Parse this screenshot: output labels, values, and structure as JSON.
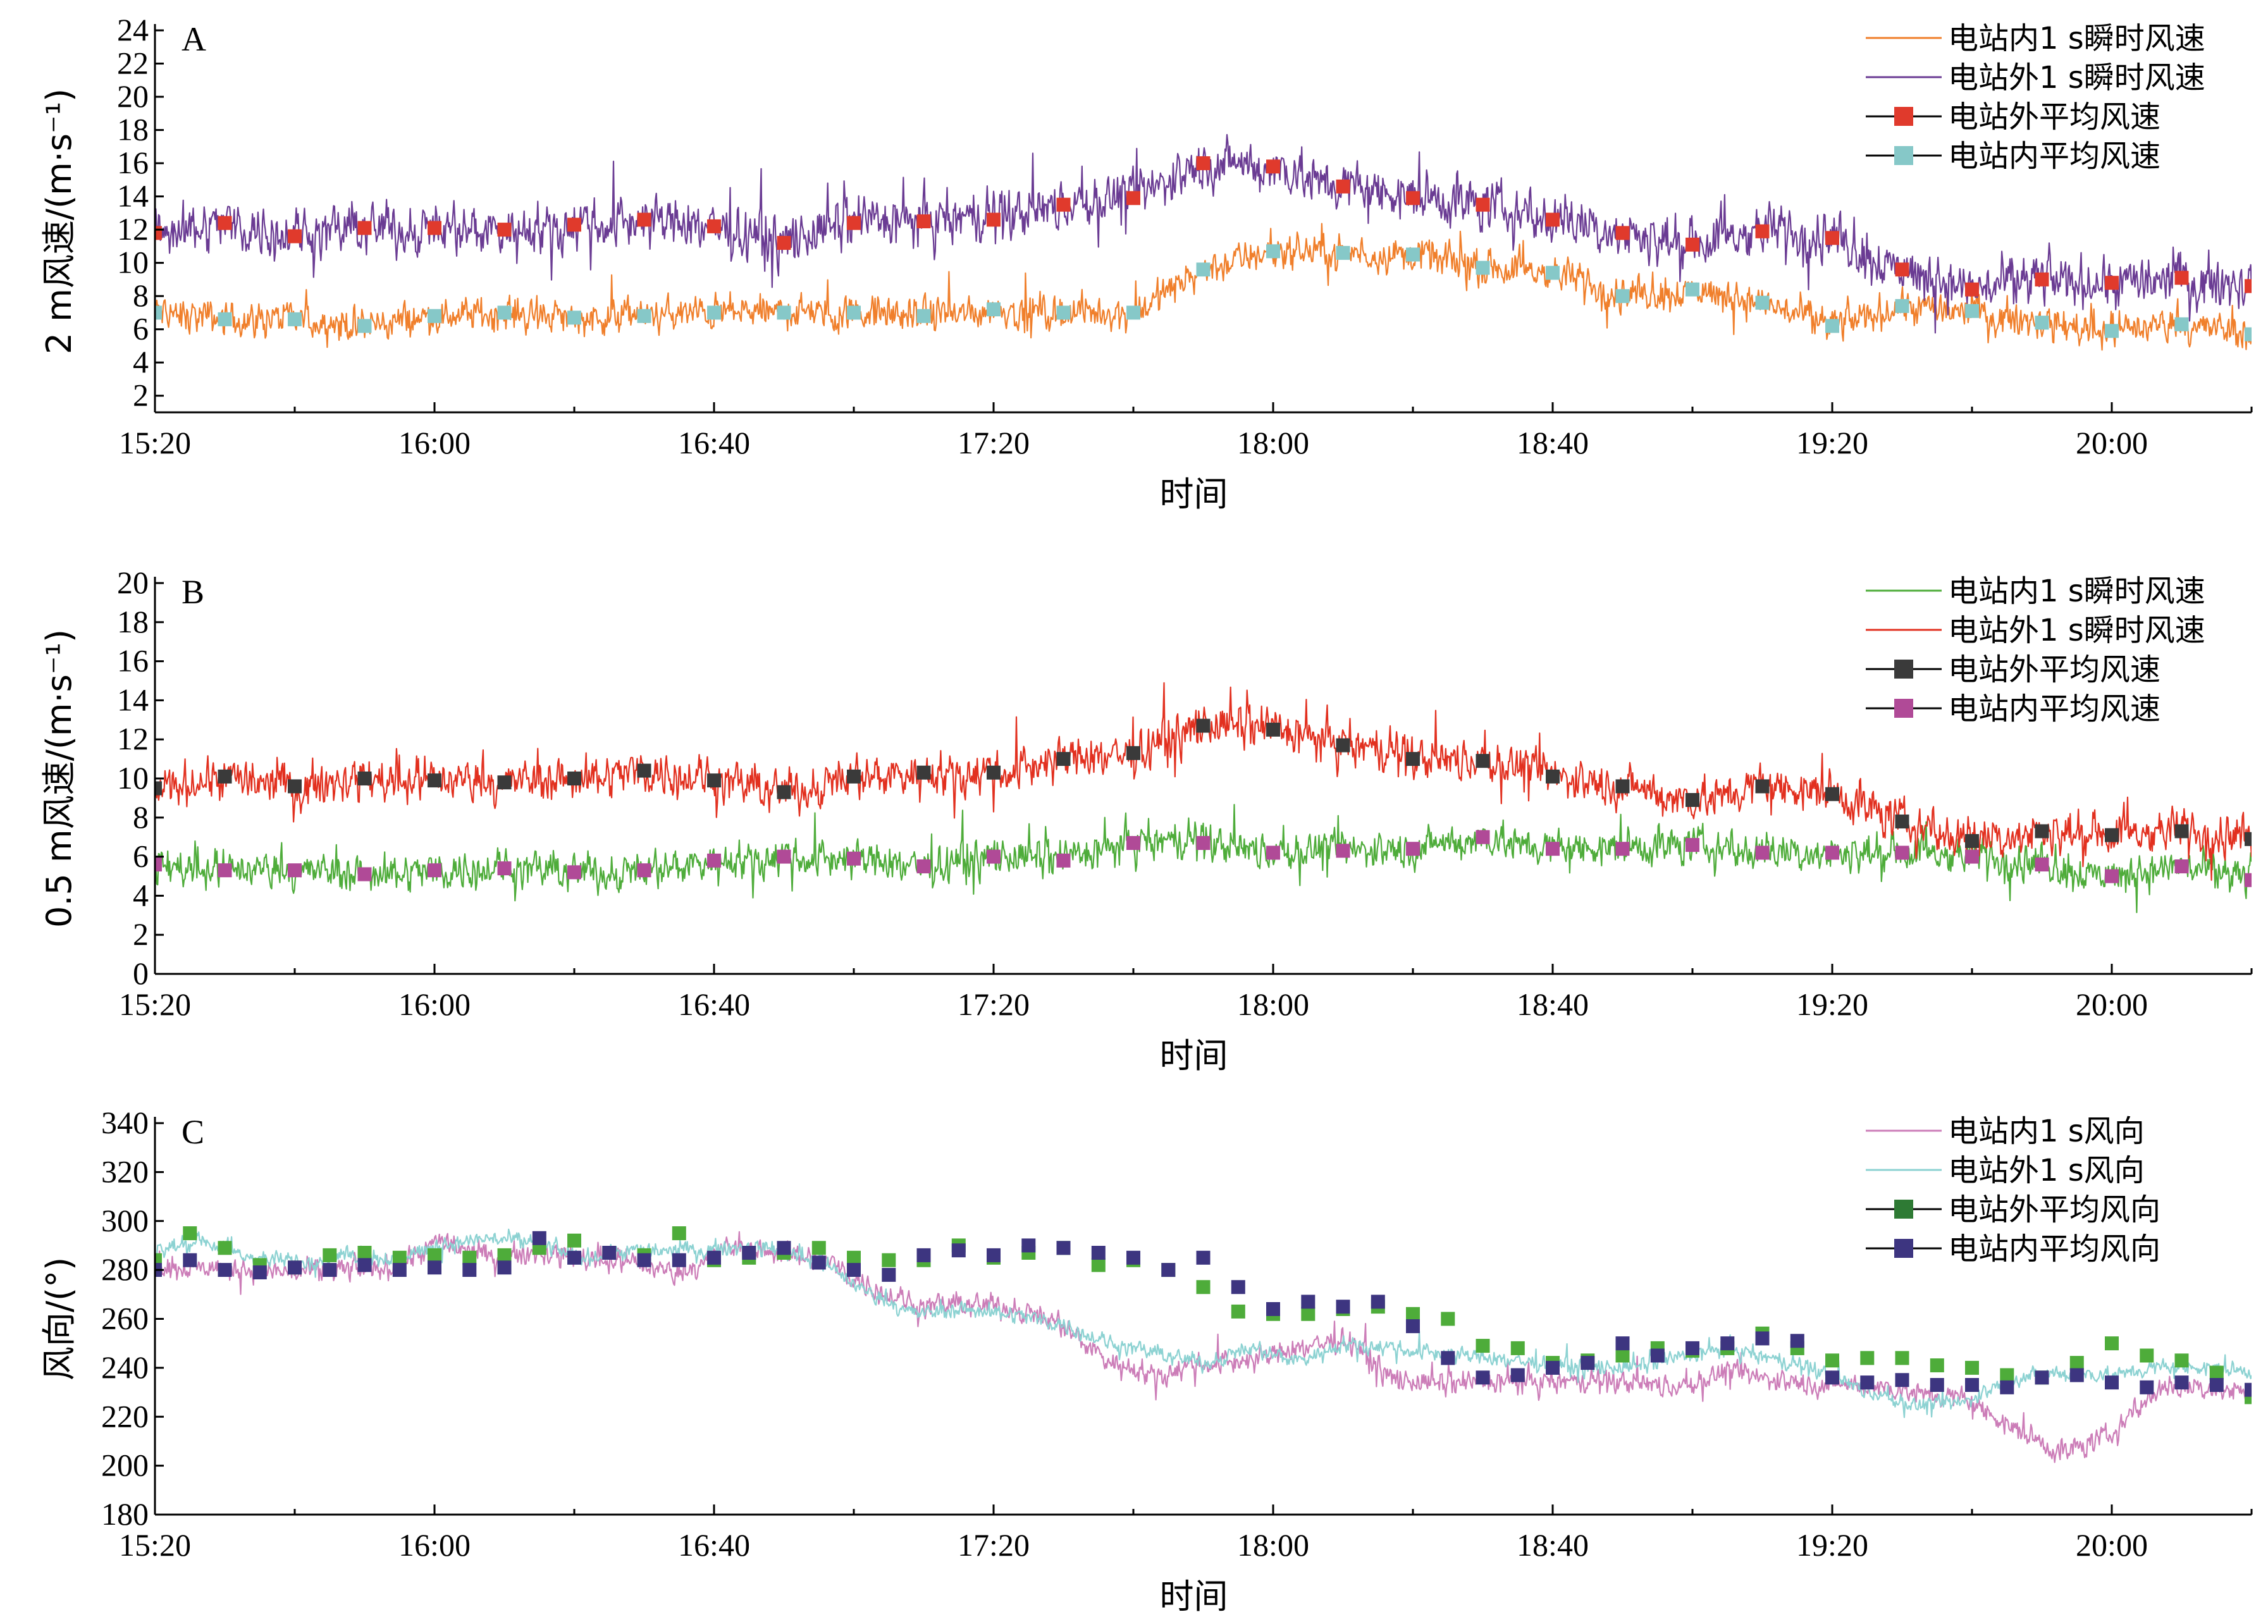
{
  "chart_data": [
    {
      "type": "line",
      "panel_label": "A",
      "xlabel": "时间",
      "ylabel": "2 m风速/(m·s⁻¹)",
      "xticks": [
        "15:20",
        "16:00",
        "16:40",
        "17:20",
        "18:00",
        "18:40",
        "19:20",
        "20:00"
      ],
      "xlim_minutes": [
        0,
        300
      ],
      "ylim": [
        1,
        24
      ],
      "yticks": [
        2,
        4,
        6,
        8,
        10,
        12,
        14,
        16,
        18,
        20,
        22,
        24
      ],
      "legend_position": "top-right",
      "series": [
        {
          "name": "电站内1 s瞬时风速",
          "kind": "line",
          "color": "#F07F2B",
          "mean": [
            7.0,
            6.6,
            6.6,
            6.2,
            6.8,
            7.0,
            6.7,
            6.8,
            7.0,
            7.0,
            7.0,
            6.8,
            7.2,
            7.0,
            7.0,
            9.6,
            10.7,
            10.6,
            10.5,
            9.7,
            9.4,
            8.0,
            8.4,
            7.6,
            6.2,
            7.4,
            7.1,
            6.4,
            5.9,
            6.3,
            5.7
          ],
          "noise": 2.2
        },
        {
          "name": "电站外1 s瞬时风速",
          "kind": "line",
          "color": "#6A3B93",
          "mean": [
            11.8,
            12.4,
            11.6,
            12.1,
            12.1,
            12.0,
            12.3,
            12.6,
            12.2,
            11.2,
            12.4,
            12.5,
            12.6,
            13.5,
            13.9,
            16.0,
            15.8,
            14.6,
            13.9,
            13.5,
            12.6,
            11.8,
            11.1,
            11.9,
            11.5,
            9.6,
            8.4,
            9.0,
            8.8,
            9.1,
            8.6
          ],
          "noise": 3.2
        },
        {
          "name": "电站外平均风速",
          "kind": "markers",
          "color": "#E03A2C",
          "x": [
            0,
            10,
            20,
            30,
            40,
            50,
            60,
            70,
            80,
            90,
            100,
            110,
            120,
            130,
            140,
            150,
            160,
            170,
            180,
            190,
            200,
            210,
            220,
            230,
            240,
            250,
            260,
            270,
            280,
            290,
            300
          ],
          "values": [
            11.8,
            12.4,
            11.6,
            12.1,
            12.1,
            12.0,
            12.3,
            12.6,
            12.2,
            11.2,
            12.4,
            12.5,
            12.6,
            13.5,
            13.9,
            16.0,
            15.8,
            14.6,
            13.9,
            13.5,
            12.6,
            11.8,
            11.1,
            11.9,
            11.5,
            9.6,
            8.4,
            9.0,
            8.8,
            9.1,
            8.6
          ]
        },
        {
          "name": "电站内平均风速",
          "kind": "markers",
          "color": "#86C8C8",
          "x": [
            0,
            10,
            20,
            30,
            40,
            50,
            60,
            70,
            80,
            90,
            100,
            110,
            120,
            130,
            140,
            150,
            160,
            170,
            180,
            190,
            200,
            210,
            220,
            230,
            240,
            250,
            260,
            270,
            280,
            290,
            300
          ],
          "values": [
            7.0,
            6.6,
            6.6,
            6.2,
            6.8,
            7.0,
            6.7,
            6.8,
            7.0,
            7.0,
            7.0,
            6.8,
            7.2,
            7.0,
            7.0,
            9.6,
            10.7,
            10.6,
            10.5,
            9.7,
            9.4,
            8.0,
            8.4,
            7.6,
            6.2,
            7.4,
            7.1,
            6.4,
            5.9,
            6.3,
            5.7
          ]
        }
      ]
    },
    {
      "type": "line",
      "panel_label": "B",
      "xlabel": "时间",
      "ylabel": "0.5 m风速/(m·s⁻¹)",
      "xticks": [
        "15:20",
        "16:00",
        "16:40",
        "17:20",
        "18:00",
        "18:40",
        "19:20",
        "20:00"
      ],
      "xlim_minutes": [
        0,
        300
      ],
      "ylim": [
        0,
        20
      ],
      "yticks": [
        0,
        2,
        4,
        6,
        8,
        10,
        12,
        14,
        16,
        18,
        20
      ],
      "legend_position": "top-right",
      "series": [
        {
          "name": "电站内1 s瞬时风速",
          "kind": "line",
          "color": "#4EAC3A",
          "mean": [
            5.6,
            5.3,
            5.3,
            5.1,
            5.3,
            5.4,
            5.2,
            5.3,
            5.8,
            6.0,
            5.9,
            5.5,
            6.0,
            5.8,
            6.7,
            6.7,
            6.2,
            6.3,
            6.4,
            7.0,
            6.4,
            6.4,
            6.6,
            6.2,
            6.2,
            6.2,
            6.0,
            5.6,
            5.0,
            5.5,
            4.8
          ],
          "noise": 2.0
        },
        {
          "name": "电站外1 s瞬时风速",
          "kind": "line",
          "color": "#E2301F",
          "mean": [
            9.5,
            10.1,
            9.6,
            10.0,
            9.9,
            9.8,
            10.0,
            10.4,
            9.9,
            9.3,
            10.1,
            10.3,
            10.3,
            11.0,
            11.3,
            12.7,
            12.5,
            11.7,
            11.0,
            10.9,
            10.1,
            9.6,
            8.9,
            9.6,
            9.2,
            7.8,
            6.8,
            7.3,
            7.1,
            7.3,
            6.9
          ],
          "noise": 2.3
        },
        {
          "name": "电站外平均风速",
          "kind": "markers",
          "color": "#3A3A3A",
          "x": [
            0,
            10,
            20,
            30,
            40,
            50,
            60,
            70,
            80,
            90,
            100,
            110,
            120,
            130,
            140,
            150,
            160,
            170,
            180,
            190,
            200,
            210,
            220,
            230,
            240,
            250,
            260,
            270,
            280,
            290,
            300
          ],
          "values": [
            9.5,
            10.1,
            9.6,
            10.0,
            9.9,
            9.8,
            10.0,
            10.4,
            9.9,
            9.3,
            10.1,
            10.3,
            10.3,
            11.0,
            11.3,
            12.7,
            12.5,
            11.7,
            11.0,
            10.9,
            10.1,
            9.6,
            8.9,
            9.6,
            9.2,
            7.8,
            6.8,
            7.3,
            7.1,
            7.3,
            6.9
          ]
        },
        {
          "name": "电站内平均风速",
          "kind": "markers",
          "color": "#B04A97",
          "x": [
            0,
            10,
            20,
            30,
            40,
            50,
            60,
            70,
            80,
            90,
            100,
            110,
            120,
            130,
            140,
            150,
            160,
            170,
            180,
            190,
            200,
            210,
            220,
            230,
            240,
            250,
            260,
            270,
            280,
            290,
            300
          ],
          "values": [
            5.6,
            5.3,
            5.3,
            5.1,
            5.3,
            5.4,
            5.2,
            5.3,
            5.8,
            6.0,
            5.9,
            5.5,
            6.0,
            5.8,
            6.7,
            6.7,
            6.2,
            6.3,
            6.4,
            7.0,
            6.4,
            6.4,
            6.6,
            6.2,
            6.2,
            6.2,
            6.0,
            5.6,
            5.0,
            5.5,
            4.8
          ]
        }
      ]
    },
    {
      "type": "line",
      "panel_label": "C",
      "xlabel": "时间",
      "ylabel": "风向/(°)",
      "xticks": [
        "15:20",
        "16:00",
        "16:40",
        "17:20",
        "18:00",
        "18:40",
        "19:20",
        "20:00"
      ],
      "xlim_minutes": [
        0,
        300
      ],
      "ylim": [
        180,
        340
      ],
      "yticks": [
        180,
        200,
        220,
        240,
        260,
        280,
        300,
        320,
        340
      ],
      "legend_position": "top-right",
      "series": [
        {
          "name": "电站内1 s风向",
          "kind": "line",
          "color": "#CC7DB8",
          "mean": [
            282,
            281,
            280,
            279,
            280,
            281,
            292,
            285,
            287,
            285,
            283,
            278,
            289,
            287,
            285,
            273,
            265,
            266,
            265,
            258,
            243,
            237,
            242,
            243,
            248,
            252,
            235,
            233,
            234,
            234,
            234,
            234,
            232,
            238,
            235,
            233,
            233,
            230,
            227,
            215,
            205,
            212,
            231,
            232,
            230
          ],
          "noise": 10
        },
        {
          "name": "电站外1 s风向",
          "kind": "line",
          "color": "#8CD2D2",
          "mean": [
            288,
            292,
            285,
            283,
            286,
            285,
            290,
            293,
            291,
            285,
            288,
            288,
            289,
            289,
            283,
            270,
            262,
            264,
            262,
            258,
            250,
            246,
            242,
            248,
            243,
            250,
            248,
            246,
            244,
            242,
            240,
            240,
            244,
            248,
            243,
            238,
            230,
            224,
            226,
            236,
            238,
            237,
            240,
            240,
            238
          ],
          "noise": 7
        },
        {
          "name": "电站外平均风向",
          "kind": "markers",
          "color": "#2E7A34",
          "legend_only_color": true,
          "marker_color": "#4EAC3A",
          "x": [
            0,
            5,
            10,
            15,
            20,
            25,
            30,
            35,
            40,
            45,
            50,
            55,
            60,
            65,
            70,
            75,
            80,
            85,
            90,
            95,
            100,
            105,
            110,
            115,
            120,
            125,
            130,
            135,
            140,
            145,
            150,
            155,
            160,
            165,
            170,
            175,
            180,
            185,
            190,
            195,
            200,
            205,
            210,
            215,
            220,
            225,
            230,
            235,
            240,
            245,
            250,
            255,
            260,
            265,
            270,
            275,
            280,
            285,
            290,
            295,
            300
          ],
          "values": [
            284,
            295,
            289,
            282,
            281,
            286,
            287,
            285,
            286,
            285,
            286,
            289,
            292,
            287,
            286,
            295,
            284,
            285,
            287,
            289,
            285,
            284,
            284,
            290,
            285,
            287,
            289,
            282,
            284,
            280,
            273,
            263,
            262,
            262,
            264,
            265,
            262,
            260,
            249,
            248,
            242,
            243,
            245,
            248,
            247,
            248,
            254,
            248,
            243,
            244,
            244,
            241,
            240,
            237,
            236,
            242,
            250,
            245,
            243,
            238,
            228
          ]
        },
        {
          "name": "电站内平均风向",
          "kind": "markers",
          "color": "#3D3580",
          "x": [
            0,
            5,
            10,
            15,
            20,
            25,
            30,
            35,
            40,
            45,
            50,
            55,
            60,
            65,
            70,
            75,
            80,
            85,
            90,
            95,
            100,
            105,
            110,
            115,
            120,
            125,
            130,
            135,
            140,
            145,
            150,
            155,
            160,
            165,
            170,
            175,
            180,
            185,
            190,
            195,
            200,
            205,
            210,
            215,
            220,
            225,
            230,
            235,
            240,
            245,
            250,
            255,
            260,
            265,
            270,
            275,
            280,
            285,
            290,
            295,
            300
          ],
          "values": [
            280,
            284,
            280,
            279,
            281,
            280,
            282,
            280,
            281,
            280,
            281,
            293,
            285,
            287,
            284,
            284,
            285,
            287,
            289,
            283,
            280,
            278,
            286,
            288,
            286,
            290,
            289,
            287,
            285,
            280,
            285,
            273,
            264,
            267,
            265,
            267,
            257,
            244,
            236,
            237,
            240,
            242,
            250,
            245,
            248,
            250,
            252,
            251,
            236,
            234,
            235,
            233,
            233,
            232,
            236,
            237,
            234,
            232,
            234,
            233,
            231
          ]
        }
      ]
    }
  ]
}
